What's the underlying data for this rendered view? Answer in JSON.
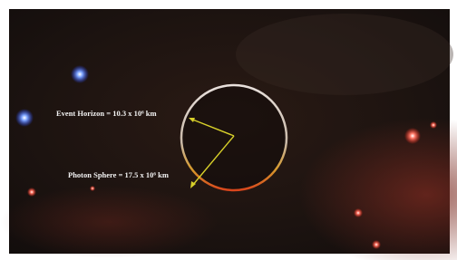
{
  "labels": {
    "event_horizon": "Event Horizon = 10.3 x 10⁶ km",
    "photon_sphere": "Photon Sphere = 17.5 x 10⁶ km"
  }
}
